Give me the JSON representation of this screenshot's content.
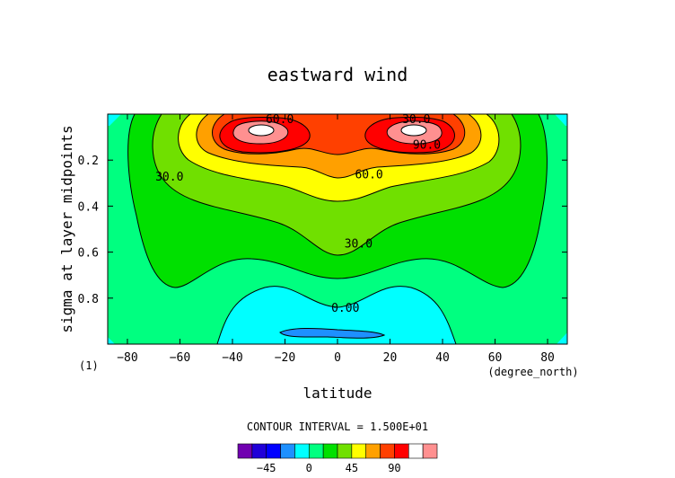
{
  "chart_data": {
    "type": "contour",
    "title": "eastward wind",
    "xlabel": "latitude",
    "ylabel": "sigma at layer midpoints",
    "x_units": "(degree_north)",
    "panel_label": "(1)",
    "xlim": [
      -87.5,
      87.5
    ],
    "ylim": [
      1.0,
      0.0
    ],
    "y_inverted": true,
    "x_ticks": [
      -80,
      -60,
      -40,
      -20,
      0,
      20,
      40,
      60,
      80
    ],
    "y_ticks": [
      0.2,
      0.4,
      0.6,
      0.8
    ],
    "y_tick_labels": [
      "0.2",
      "0.4",
      "0.6",
      "0.8"
    ],
    "contour_interval_text": "CONTOUR INTERVAL = 1.500E+01",
    "contour_interval": 15,
    "contour_line_labels": [
      {
        "text": "60.0",
        "lat": -22,
        "sigma": 0.02
      },
      {
        "text": "30.0",
        "lat": 30,
        "sigma": 0.02
      },
      {
        "text": "90.0",
        "lat": 34,
        "sigma": 0.13
      },
      {
        "text": "60.0",
        "lat": 12,
        "sigma": 0.26
      },
      {
        "text": "30.0",
        "lat": -64,
        "sigma": 0.27
      },
      {
        "text": "30.0",
        "lat": 8,
        "sigma": 0.56
      },
      {
        "text": "0.00",
        "lat": 3,
        "sigma": 0.84
      }
    ],
    "colorbar": {
      "levels": [
        -60,
        -45,
        -30,
        -15,
        0,
        15,
        30,
        45,
        60,
        75,
        90,
        105,
        120
      ],
      "colors": [
        "#7000b0",
        "#2000d8",
        "#0000ff",
        "#1e90ff",
        "#00ffff",
        "#00ff80",
        "#00e000",
        "#70e000",
        "#ffff00",
        "#ffa000",
        "#ff4000",
        "#ff0000",
        "#ffffff",
        "#ff9090"
      ],
      "tick_labels": [
        "-45",
        "0",
        "45",
        "90"
      ],
      "tick_values": [
        -45,
        0,
        45,
        90
      ]
    },
    "band_colors": {
      "neg15": "#1e90ff",
      "0": "#00ffff",
      "15": "#00ff80",
      "30": "#00e000",
      "45": "#70e000",
      "60": "#ffff00",
      "75": "#ffa000",
      "90": "#ff4000",
      "105": "#ff0000",
      "120": "#ffffff"
    },
    "jet_maxima": [
      {
        "lat": -27,
        "sigma": 0.08,
        "value": 125
      },
      {
        "lat": 30,
        "sigma": 0.08,
        "value": 125
      }
    ],
    "surface_easterly_min": {
      "lat": -5,
      "sigma": 0.95,
      "value": -15
    }
  }
}
